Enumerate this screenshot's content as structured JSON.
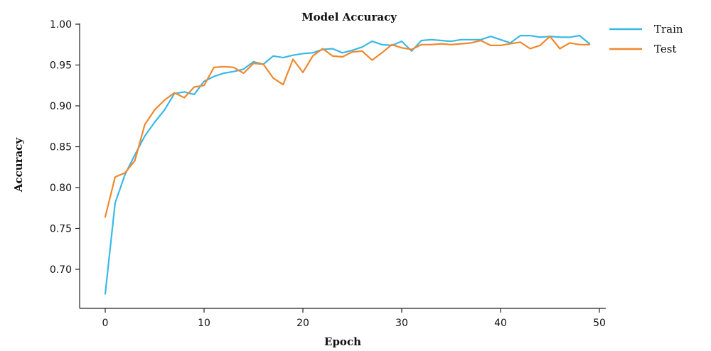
{
  "chart_data": {
    "type": "line",
    "title": "Model Accuracy",
    "xlabel": "Epoch",
    "ylabel": "Accuracy",
    "xlim": [
      -1,
      51
    ],
    "ylim": [
      0.655,
      1.0
    ],
    "xticks": [
      0,
      10,
      20,
      30,
      40,
      50
    ],
    "xtick_labels": [
      "0",
      "10",
      "20",
      "30",
      "40",
      "50"
    ],
    "yticks": [
      0.7,
      0.75,
      0.8,
      0.85,
      0.9,
      0.95,
      1.0
    ],
    "ytick_labels": [
      "0.70",
      "0.75",
      "0.80",
      "0.85",
      "0.90",
      "0.95",
      "1.00"
    ],
    "grid": false,
    "legend_position": "top-right",
    "x": [
      0,
      1,
      2,
      3,
      4,
      5,
      6,
      7,
      8,
      9,
      10,
      11,
      12,
      13,
      14,
      15,
      16,
      17,
      18,
      19,
      20,
      21,
      22,
      23,
      24,
      25,
      26,
      27,
      28,
      29,
      30,
      31,
      32,
      33,
      34,
      35,
      36,
      37,
      38,
      39,
      40,
      41,
      42,
      43,
      44,
      45,
      46,
      47,
      48,
      49
    ],
    "series": [
      {
        "name": "Train",
        "color": "#3bb8e6",
        "values": [
          0.67,
          0.781,
          0.816,
          0.84,
          0.863,
          0.88,
          0.895,
          0.915,
          0.917,
          0.914,
          0.93,
          0.936,
          0.94,
          0.942,
          0.945,
          0.954,
          0.951,
          0.961,
          0.959,
          0.962,
          0.964,
          0.965,
          0.969,
          0.97,
          0.965,
          0.968,
          0.972,
          0.979,
          0.975,
          0.974,
          0.979,
          0.967,
          0.98,
          0.981,
          0.98,
          0.979,
          0.981,
          0.981,
          0.981,
          0.985,
          0.981,
          0.977,
          0.986,
          0.986,
          0.984,
          0.985,
          0.984,
          0.984,
          0.986,
          0.976
        ]
      },
      {
        "name": "Test",
        "color": "#f0882c",
        "values": [
          0.764,
          0.813,
          0.818,
          0.833,
          0.877,
          0.895,
          0.907,
          0.916,
          0.91,
          0.923,
          0.925,
          0.947,
          0.948,
          0.947,
          0.94,
          0.952,
          0.951,
          0.934,
          0.926,
          0.957,
          0.941,
          0.961,
          0.97,
          0.961,
          0.96,
          0.966,
          0.967,
          0.956,
          0.965,
          0.975,
          0.971,
          0.969,
          0.975,
          0.975,
          0.976,
          0.975,
          0.976,
          0.977,
          0.98,
          0.974,
          0.974,
          0.976,
          0.978,
          0.97,
          0.974,
          0.985,
          0.97,
          0.977,
          0.975,
          0.975
        ]
      }
    ]
  }
}
